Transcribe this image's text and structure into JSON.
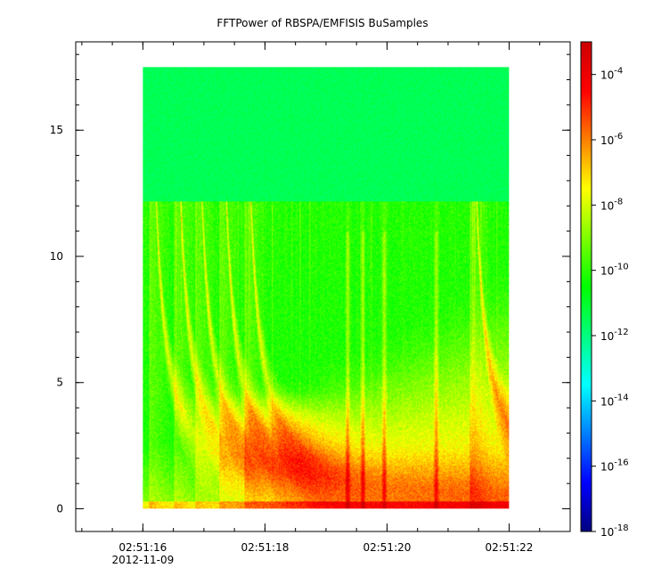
{
  "chart_data": {
    "type": "heatmap",
    "title": "FFTPower of RBSPA/EMFISIS  BuSamples",
    "xlabel": "",
    "ylabel": "",
    "x_ticks": [
      {
        "label": "02:51:16",
        "sublabel": "2012-11-09",
        "value": 16
      },
      {
        "label": "02:51:18",
        "value": 18
      },
      {
        "label": "02:51:20",
        "value": 20
      },
      {
        "label": "02:51:22",
        "value": 22
      }
    ],
    "xlim": [
      14.9,
      23.0
    ],
    "data_x_range": [
      16.0,
      22.0
    ],
    "y_ticks": [
      {
        "label": "0",
        "value": 0
      },
      {
        "label": "5",
        "value": 5
      },
      {
        "label": "10",
        "value": 10
      },
      {
        "label": "15",
        "value": 15
      }
    ],
    "ylim": [
      -0.9,
      18.5
    ],
    "data_y_range": [
      0.0,
      17.5
    ],
    "colorbar": {
      "scale": "log",
      "range": [
        1e-18,
        0.001
      ],
      "ticks": [
        {
          "base": "10",
          "exp": "-4",
          "value": -4
        },
        {
          "base": "10",
          "exp": "-6",
          "value": -6
        },
        {
          "base": "10",
          "exp": "-8",
          "value": -8
        },
        {
          "base": "10",
          "exp": "-10",
          "value": -10
        },
        {
          "base": "10",
          "exp": "-12",
          "value": -12
        },
        {
          "base": "10",
          "exp": "-14",
          "value": -14
        },
        {
          "base": "10",
          "exp": "-16",
          "value": -16
        },
        {
          "base": "10",
          "exp": "-18",
          "value": -18
        }
      ],
      "colormap": [
        "#00007f",
        "#0000ff",
        "#007fff",
        "#00ffff",
        "#00ff7f",
        "#00ff00",
        "#7fff00",
        "#ffff00",
        "#ff7f00",
        "#ff0000",
        "#cc0000"
      ]
    },
    "features": {
      "background_above_cutoff_log_power": -11.5,
      "background_below_cutoff_log_power": -10.3,
      "cutoff_frequency": 12.2,
      "dispersed_bursts_start_times": [
        16.15,
        16.55,
        16.9,
        17.3,
        17.7,
        21.4
      ],
      "narrow_bursts_times": [
        19.35,
        19.6,
        19.95,
        20.8
      ]
    }
  }
}
